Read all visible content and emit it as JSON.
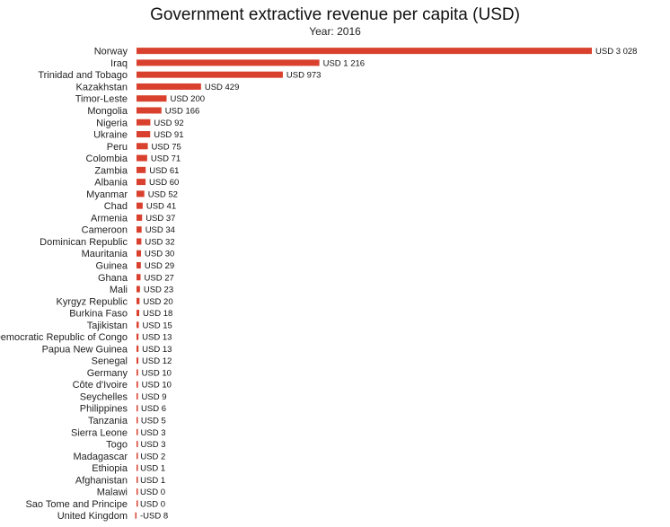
{
  "chart_data": {
    "type": "bar",
    "orientation": "horizontal",
    "title": "Government extractive revenue per capita (USD)",
    "subtitle": "Year: 2016",
    "color": "#d9412e",
    "categories": [
      "Norway",
      "Iraq",
      "Trinidad and Tobago",
      "Kazakhstan",
      "Timor-Leste",
      "Mongolia",
      "Nigeria",
      "Ukraine",
      "Peru",
      "Colombia",
      "Zambia",
      "Albania",
      "Myanmar",
      "Chad",
      "Armenia",
      "Cameroon",
      "Dominican Republic",
      "Mauritania",
      "Guinea",
      "Ghana",
      "Mali",
      "Kyrgyz Republic",
      "Burkina Faso",
      "Tajikistan",
      "Democratic Republic of Congo",
      "Papua New Guinea",
      "Senegal",
      "Germany",
      "Côte d'Ivoire",
      "Seychelles",
      "Philippines",
      "Tanzania",
      "Sierra Leone",
      "Togo",
      "Madagascar",
      "Ethiopia",
      "Afghanistan",
      "Malawi",
      "Sao Tome and Principe",
      "United Kingdom"
    ],
    "values": [
      3028,
      1216,
      973,
      429,
      200,
      166,
      92,
      91,
      75,
      71,
      61,
      60,
      52,
      41,
      37,
      34,
      32,
      30,
      29,
      27,
      23,
      20,
      18,
      15,
      13,
      13,
      12,
      10,
      10,
      9,
      6,
      5,
      3,
      3,
      2,
      1,
      1,
      0,
      0,
      -8
    ],
    "value_labels": [
      "USD 3 028",
      "USD 1 216",
      "USD 973",
      "USD 429",
      "USD 200",
      "USD 166",
      "USD 92",
      "USD 91",
      "USD 75",
      "USD 71",
      "USD 61",
      "USD 60",
      "USD 52",
      "USD 41",
      "USD 37",
      "USD 34",
      "USD 32",
      "USD 30",
      "USD 29",
      "USD 27",
      "USD 23",
      "USD 20",
      "USD 18",
      "USD 15",
      "USD 13",
      "USD 13",
      "USD 12",
      "USD 10",
      "USD 10",
      "USD 9",
      "USD 6",
      "USD 5",
      "USD 3",
      "USD 3",
      "USD 2",
      "USD 1",
      "USD 1",
      "USD 0",
      "USD 0",
      "-USD 8"
    ],
    "xlim": [
      -8,
      3028
    ],
    "grid": false,
    "legend": "none"
  }
}
